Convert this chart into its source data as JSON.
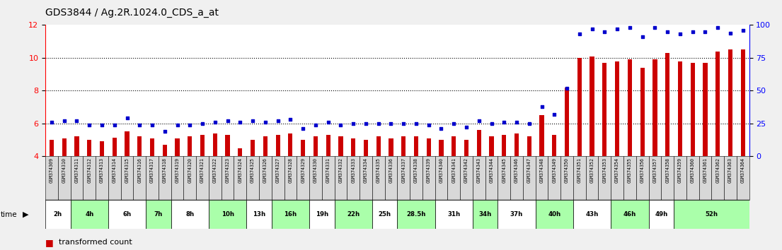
{
  "title": "GDS3844 / Ag.2R.1024.0_CDS_a_at",
  "samples": [
    "GSM374309",
    "GSM374310",
    "GSM374311",
    "GSM374312",
    "GSM374313",
    "GSM374314",
    "GSM374315",
    "GSM374316",
    "GSM374317",
    "GSM374318",
    "GSM374319",
    "GSM374320",
    "GSM374321",
    "GSM374322",
    "GSM374323",
    "GSM374324",
    "GSM374325",
    "GSM374326",
    "GSM374327",
    "GSM374328",
    "GSM374329",
    "GSM374330",
    "GSM374331",
    "GSM374332",
    "GSM374333",
    "GSM374334",
    "GSM374335",
    "GSM374336",
    "GSM374337",
    "GSM374338",
    "GSM374339",
    "GSM374340",
    "GSM374341",
    "GSM374342",
    "GSM374343",
    "GSM374344",
    "GSM374345",
    "GSM374346",
    "GSM374347",
    "GSM374348",
    "GSM374349",
    "GSM374350",
    "GSM374351",
    "GSM374352",
    "GSM374353",
    "GSM374354",
    "GSM374355",
    "GSM374356",
    "GSM374357",
    "GSM374358",
    "GSM374359",
    "GSM374360",
    "GSM374361",
    "GSM374362",
    "GSM374363",
    "GSM374364"
  ],
  "transformed_count": [
    5.0,
    5.1,
    5.2,
    5.0,
    4.9,
    5.15,
    5.5,
    5.2,
    5.1,
    4.7,
    5.1,
    5.2,
    5.3,
    5.4,
    5.3,
    4.5,
    5.0,
    5.2,
    5.3,
    5.4,
    5.0,
    5.2,
    5.3,
    5.2,
    5.1,
    5.0,
    5.2,
    5.1,
    5.2,
    5.2,
    5.1,
    5.0,
    5.2,
    5.0,
    5.6,
    5.2,
    5.3,
    5.4,
    5.2,
    6.5,
    5.3,
    8.2,
    10.0,
    10.1,
    9.7,
    9.8,
    9.9,
    9.4,
    9.9,
    10.3,
    9.8,
    9.7,
    9.7,
    10.4,
    10.5,
    10.5
  ],
  "percentile_rank": [
    26,
    27,
    27,
    24,
    24,
    24,
    29,
    24,
    24,
    19,
    24,
    24,
    25,
    26,
    27,
    26,
    27,
    26,
    27,
    28,
    21,
    24,
    26,
    24,
    25,
    25,
    25,
    25,
    25,
    25,
    24,
    21,
    25,
    22,
    27,
    25,
    26,
    26,
    25,
    38,
    32,
    52,
    93,
    97,
    95,
    97,
    98,
    91,
    98,
    95,
    93,
    95,
    95,
    98,
    94,
    96
  ],
  "time_groups": [
    {
      "label": "2h",
      "start": 0,
      "end": 2
    },
    {
      "label": "4h",
      "start": 2,
      "end": 5
    },
    {
      "label": "6h",
      "start": 5,
      "end": 8
    },
    {
      "label": "7h",
      "start": 8,
      "end": 10
    },
    {
      "label": "8h",
      "start": 10,
      "end": 13
    },
    {
      "label": "10h",
      "start": 13,
      "end": 16
    },
    {
      "label": "13h",
      "start": 16,
      "end": 18
    },
    {
      "label": "16h",
      "start": 18,
      "end": 21
    },
    {
      "label": "19h",
      "start": 21,
      "end": 23
    },
    {
      "label": "22h",
      "start": 23,
      "end": 26
    },
    {
      "label": "25h",
      "start": 26,
      "end": 28
    },
    {
      "label": "28.5h",
      "start": 28,
      "end": 31
    },
    {
      "label": "31h",
      "start": 31,
      "end": 34
    },
    {
      "label": "34h",
      "start": 34,
      "end": 36
    },
    {
      "label": "37h",
      "start": 36,
      "end": 39
    },
    {
      "label": "40h",
      "start": 39,
      "end": 42
    },
    {
      "label": "43h",
      "start": 42,
      "end": 45
    },
    {
      "label": "46h",
      "start": 45,
      "end": 48
    },
    {
      "label": "49h",
      "start": 48,
      "end": 50
    },
    {
      "label": "52h",
      "start": 50,
      "end": 56
    }
  ],
  "ylim_left": [
    4,
    12
  ],
  "ylim_right": [
    0,
    100
  ],
  "yticks_left": [
    4,
    6,
    8,
    10,
    12
  ],
  "yticks_right": [
    0,
    25,
    50,
    75,
    100
  ],
  "bar_color": "#cc0000",
  "dot_color": "#0000cc",
  "bar_bottom": 4.0,
  "fig_bg": "#f0f0f0",
  "plot_bg": "#ffffff",
  "group_colors": [
    "#ffffff",
    "#aaffaa"
  ]
}
